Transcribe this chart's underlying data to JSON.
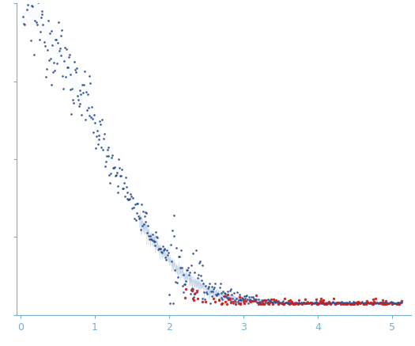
{
  "bg_color": "#ffffff",
  "blue_dot_color": "#2b5090",
  "red_dot_color": "#cc2020",
  "band_color": "#b0c8e8",
  "line_color": "#a8c0e0",
  "axis_color": "#7aacce",
  "seed": 12345,
  "n_points_main": 520,
  "n_points_red": 130,
  "q_max": 5.12
}
